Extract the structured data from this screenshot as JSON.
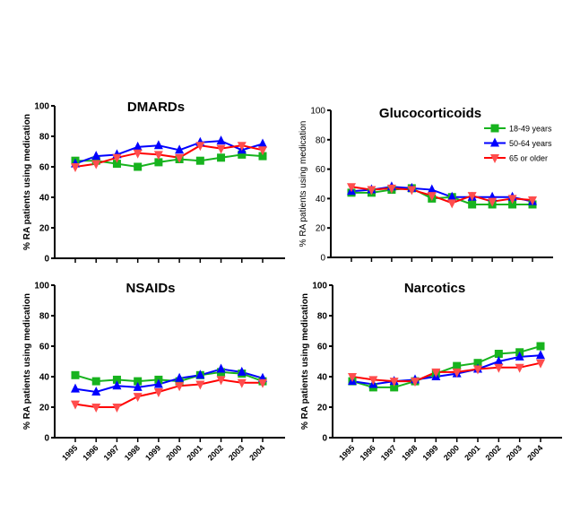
{
  "chart_data": [
    {
      "type": "line",
      "title": "DMARDs",
      "ylabel": "% RA patients using medication",
      "ylim": [
        0,
        100
      ],
      "yticks": [
        "0",
        "20",
        "40",
        "60",
        "80",
        "100"
      ],
      "categories": [
        "1995",
        "1996",
        "1997",
        "1998",
        "1999",
        "2000",
        "2001",
        "2002",
        "2003",
        "2004"
      ],
      "show_xticklabels": false,
      "legend": false,
      "series": [
        {
          "name": "18-49 years",
          "values": [
            64,
            64,
            62,
            60,
            63,
            65,
            64,
            66,
            68,
            67
          ]
        },
        {
          "name": "50-64 years",
          "values": [
            62,
            67,
            68,
            73,
            74,
            71,
            76,
            77,
            71,
            75
          ]
        },
        {
          "name": "65 or older",
          "values": [
            60,
            62,
            66,
            69,
            68,
            66,
            74,
            72,
            74,
            71
          ]
        }
      ]
    },
    {
      "type": "line",
      "title": "Glucocorticoids",
      "ylabel": "% RA patients using medication",
      "ylim": [
        0,
        100
      ],
      "yticks": [
        "0",
        "20",
        "40",
        "60",
        "80",
        "100"
      ],
      "categories": [
        "1995",
        "1996",
        "1997",
        "1998",
        "1999",
        "2000",
        "2001",
        "2002",
        "2003",
        "2004"
      ],
      "show_xticklabels": false,
      "legend": "top-right",
      "series": [
        {
          "name": "18-49 years",
          "values": [
            44,
            44,
            46,
            47,
            40,
            41,
            36,
            36,
            36,
            36
          ]
        },
        {
          "name": "50-64 years",
          "values": [
            45,
            46,
            48,
            47,
            46,
            41,
            41,
            41,
            41,
            38
          ]
        },
        {
          "name": "65 or older",
          "values": [
            48,
            46,
            47,
            46,
            42,
            37,
            42,
            38,
            40,
            39
          ]
        }
      ]
    },
    {
      "type": "line",
      "title": "NSAIDs",
      "ylabel": "% RA patients using medication",
      "ylim": [
        0,
        100
      ],
      "yticks": [
        "0",
        "20",
        "40",
        "60",
        "80",
        "100"
      ],
      "categories": [
        "1995",
        "1996",
        "1997",
        "1998",
        "1999",
        "2000",
        "2001",
        "2002",
        "2003",
        "2004"
      ],
      "show_xticklabels": true,
      "legend": false,
      "series": [
        {
          "name": "18-49 years",
          "values": [
            41,
            37,
            38,
            37,
            38,
            37,
            41,
            43,
            42,
            37
          ]
        },
        {
          "name": "50-64 years",
          "values": [
            32,
            30,
            34,
            33,
            35,
            39,
            41,
            45,
            43,
            39
          ]
        },
        {
          "name": "65 or older",
          "values": [
            22,
            20,
            20,
            27,
            30,
            34,
            35,
            38,
            36,
            36
          ]
        }
      ]
    },
    {
      "type": "line",
      "title": "Narcotics",
      "ylabel": "% RA patients using medication",
      "ylim": [
        0,
        100
      ],
      "yticks": [
        "0",
        "20",
        "40",
        "60",
        "80",
        "100"
      ],
      "categories": [
        "1995",
        "1996",
        "1997",
        "1998",
        "1999",
        "2000",
        "2001",
        "2002",
        "2003",
        "2004"
      ],
      "show_xticklabels": true,
      "legend": false,
      "series": [
        {
          "name": "18-49 years",
          "values": [
            37,
            33,
            33,
            37,
            42,
            47,
            49,
            55,
            56,
            60
          ]
        },
        {
          "name": "50-64 years",
          "values": [
            37,
            35,
            37,
            38,
            40,
            42,
            45,
            50,
            53,
            54
          ]
        },
        {
          "name": "65 or older",
          "values": [
            40,
            38,
            37,
            37,
            43,
            43,
            45,
            46,
            46,
            49
          ]
        }
      ]
    }
  ],
  "colors": {
    "18-49 years": "#17b31e",
    "50-64 years": "#0000ff",
    "65 or older": "#ff0000",
    "marker_65": "#ff4d4d"
  }
}
